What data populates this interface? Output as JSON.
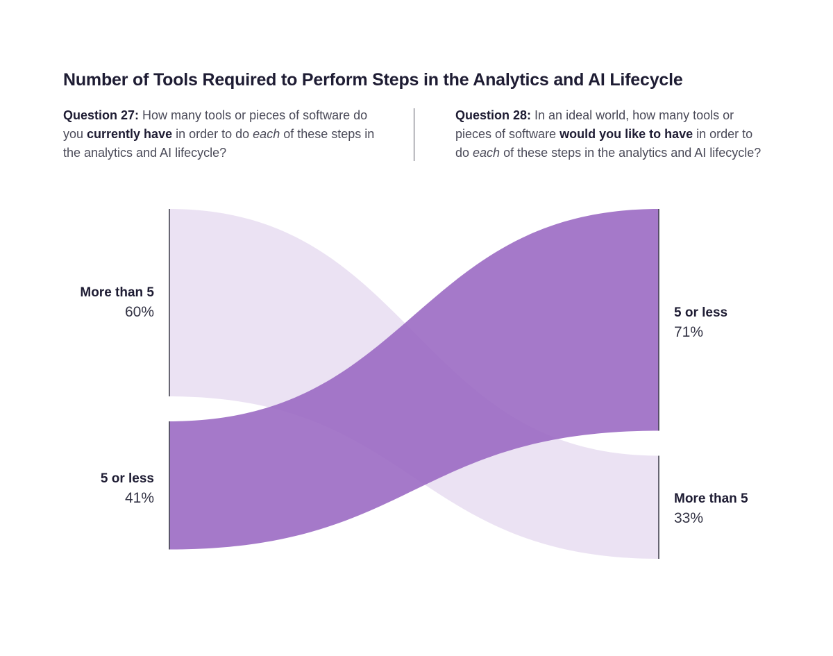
{
  "title": "Number of Tools Required to Perform Steps in the Analytics and AI Lifecycle",
  "questions": {
    "q27": {
      "label": "Question 27:",
      "t1": " How many tools or pieces of software do you ",
      "bold": "currently have",
      "t2": " in  order to do ",
      "italic": "each",
      "t3": " of these steps in the analytics and AI lifecycle?"
    },
    "q28": {
      "label": "Question 28:",
      "t1": " In an ideal world, how many tools or pieces of software ",
      "bold": "would you like to have",
      "t2": " in order to do ",
      "italic": "each",
      "t3": " of these steps in the analytics and AI lifecycle?"
    }
  },
  "colors": {
    "dark_purple": "#9b6ac3",
    "light_purple": "#e6dbf0",
    "axis": "#3a3a48"
  },
  "chart_data": {
    "type": "sankey",
    "left_nodes": [
      {
        "name": "More than 5",
        "value_label": "60%",
        "value": 60
      },
      {
        "name": "5 or less",
        "value_label": "41%",
        "value": 41
      }
    ],
    "right_nodes": [
      {
        "name": "5 or less",
        "value_label": "71%",
        "value": 71
      },
      {
        "name": "More than 5",
        "value_label": "33%",
        "value": 33
      }
    ],
    "flows": [
      {
        "from": "More than 5",
        "to": "More than 5",
        "shade": "light"
      },
      {
        "from": "5 or less",
        "to": "5 or less",
        "shade": "dark"
      }
    ]
  }
}
